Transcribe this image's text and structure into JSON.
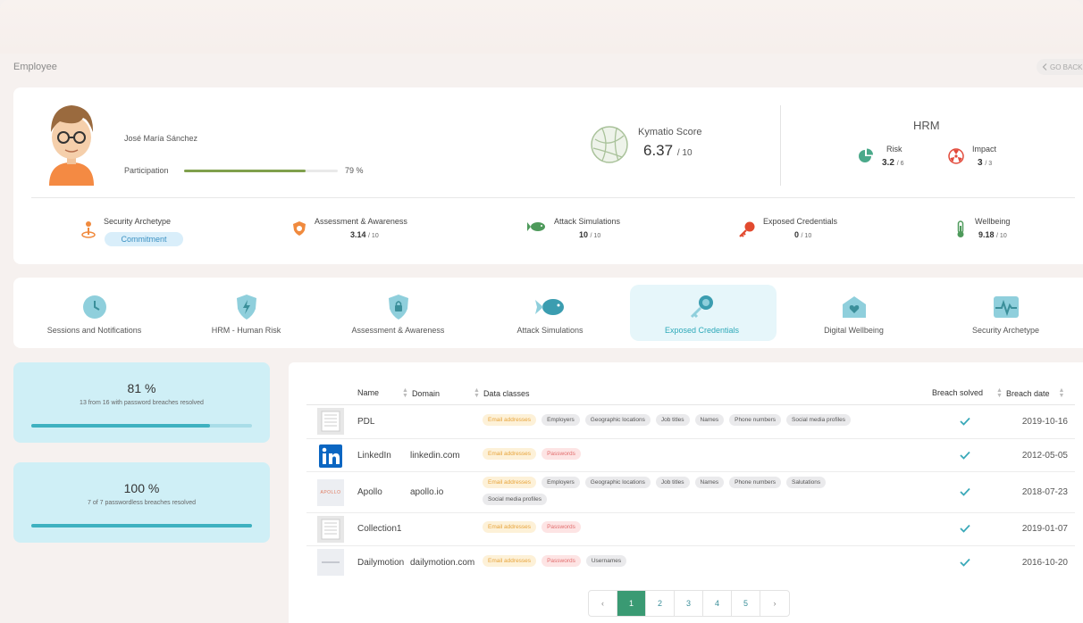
{
  "page": {
    "title": "Employee",
    "go_back": "GO BACK"
  },
  "employee": {
    "name": "José María Sánchez",
    "participation_label": "Participation",
    "participation_value": 79,
    "participation_text": "79 %"
  },
  "score": {
    "label": "Kymatio Score",
    "value": "6.37",
    "max": "/ 10"
  },
  "hrm": {
    "title": "HRM",
    "risk": {
      "label": "Risk",
      "value": "3.2",
      "max": "/ 6"
    },
    "impact": {
      "label": "Impact",
      "value": "3",
      "max": "/ 3"
    }
  },
  "metrics": [
    {
      "label": "Security Archetype",
      "badge": "Commitment"
    },
    {
      "label": "Assessment & Awareness",
      "value": "3.14",
      "max": "/ 10"
    },
    {
      "label": "Attack Simulations",
      "value": "10",
      "max": "/ 10"
    },
    {
      "label": "Exposed Credentials",
      "value": "0",
      "max": "/ 10"
    },
    {
      "label": "Wellbeing",
      "value": "9.18",
      "max": "/ 10"
    }
  ],
  "tabs": [
    {
      "label": "Sessions and Notifications",
      "icon": "clock-icon"
    },
    {
      "label": "HRM - Human Risk",
      "icon": "shield-bolt-icon"
    },
    {
      "label": "Assessment & Awareness",
      "icon": "shield-lock-icon"
    },
    {
      "label": "Attack Simulations",
      "icon": "fish-icon"
    },
    {
      "label": "Exposed Credentials",
      "icon": "key-icon",
      "active": true
    },
    {
      "label": "Digital Wellbeing",
      "icon": "house-heart-icon"
    },
    {
      "label": "Security Archetype",
      "icon": "pulse-icon"
    }
  ],
  "stats": [
    {
      "value": "81 %",
      "desc": "13 from 16 with password breaches resolved",
      "fill": 0.81
    },
    {
      "value": "100 %",
      "desc": "7 of 7 passwordless breaches resolved",
      "fill": 1.0
    }
  ],
  "table": {
    "headers": {
      "name": "Name",
      "domain": "Domain",
      "data_classes": "Data classes",
      "solved": "Breach solved",
      "date": "Breach date"
    },
    "rows": [
      {
        "logo": "PDL",
        "name": "PDL",
        "domain": "",
        "tags": [
          "Email addresses",
          "Employers",
          "Geographic locations",
          "Job titles",
          "Names",
          "Phone numbers",
          "Social media profiles"
        ],
        "solved": true,
        "date": "2019-10-16"
      },
      {
        "logo": "linkedin",
        "name": "LinkedIn",
        "domain": "linkedin.com",
        "tags": [
          "Email addresses",
          "Passwords"
        ],
        "solved": true,
        "date": "2012-05-05"
      },
      {
        "logo": "APOLLO",
        "name": "Apollo",
        "domain": "apollo.io",
        "tags": [
          "Email addresses",
          "Employers",
          "Geographic locations",
          "Job titles",
          "Names",
          "Phone numbers",
          "Salutations",
          "Social media profiles"
        ],
        "solved": true,
        "date": "2018-07-23"
      },
      {
        "logo": "collection",
        "name": "Collection1",
        "domain": "",
        "tags": [
          "Email addresses",
          "Passwords"
        ],
        "solved": true,
        "date": "2019-01-07"
      },
      {
        "logo": "dailymotion",
        "name": "Dailymotion",
        "domain": "dailymotion.com",
        "tags": [
          "Email addresses",
          "Passwords",
          "Usernames"
        ],
        "solved": true,
        "date": "2016-10-20"
      }
    ]
  },
  "pagination": {
    "prev": "‹",
    "next": "›",
    "pages": [
      "1",
      "2",
      "3",
      "4",
      "5"
    ],
    "current": "1"
  },
  "colors": {
    "accent": "#2ea9b9",
    "participation": "#7fa04c",
    "card": "#cfeff6",
    "active_page": "#3a9a73"
  }
}
